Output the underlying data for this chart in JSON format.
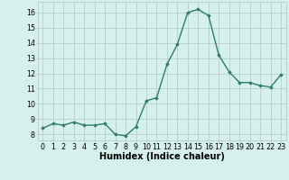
{
  "x": [
    0,
    1,
    2,
    3,
    4,
    5,
    6,
    7,
    8,
    9,
    10,
    11,
    12,
    13,
    14,
    15,
    16,
    17,
    18,
    19,
    20,
    21,
    22,
    23
  ],
  "y": [
    8.4,
    8.7,
    8.6,
    8.8,
    8.6,
    8.6,
    8.7,
    8.0,
    7.9,
    8.5,
    10.2,
    10.4,
    12.6,
    13.9,
    16.0,
    16.2,
    15.8,
    13.2,
    12.1,
    11.4,
    11.4,
    11.2,
    11.1,
    11.9
  ],
  "line_color": "#2d7d6e",
  "marker": "D",
  "marker_size": 1.8,
  "bg_color": "#d6f0ec",
  "grid_color": "#b8ceca",
  "xlabel": "Humidex (Indice chaleur)",
  "xlabel_fontsize": 7,
  "ylabel_ticks": [
    8,
    9,
    10,
    11,
    12,
    13,
    14,
    15,
    16
  ],
  "ylim": [
    7.6,
    16.7
  ],
  "xlim": [
    -0.5,
    23.5
  ],
  "xticks": [
    0,
    1,
    2,
    3,
    4,
    5,
    6,
    7,
    8,
    9,
    10,
    11,
    12,
    13,
    14,
    15,
    16,
    17,
    18,
    19,
    20,
    21,
    22,
    23
  ],
  "tick_fontsize": 5.8,
  "line_width": 1.0
}
